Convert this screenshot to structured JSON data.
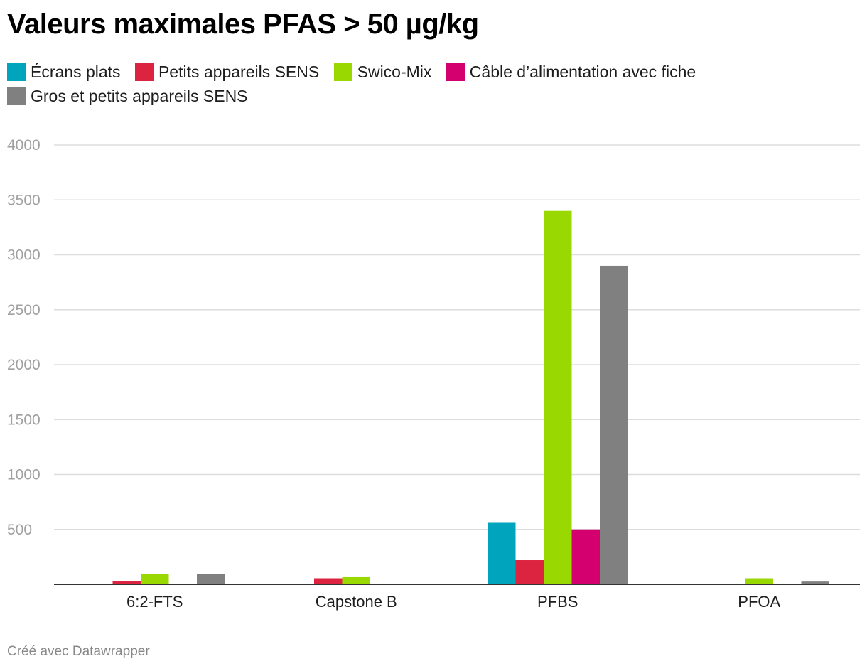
{
  "title": "Valeurs maximales PFAS > 50 µg/kg",
  "footer": "Créé avec Datawrapper",
  "legend": [
    {
      "label": "Écrans plats",
      "color": "#00a4bc"
    },
    {
      "label": "Petits appareils SENS",
      "color": "#dc2440"
    },
    {
      "label": "Swico-Mix",
      "color": "#99d800"
    },
    {
      "label": "Câble d’alimentation avec fiche",
      "color": "#d4006f"
    },
    {
      "label": "Gros et petits appareils SENS",
      "color": "#808080"
    }
  ],
  "chart_data": {
    "type": "bar",
    "title": "Valeurs maximales PFAS > 50 µg/kg",
    "xlabel": "",
    "ylabel": "",
    "ylim": [
      0,
      4000
    ],
    "yticks": [
      500,
      1000,
      1500,
      2000,
      2500,
      3000,
      3500,
      4000
    ],
    "grid": true,
    "legend_position": "top",
    "categories": [
      "6:2-FTS",
      "Capstone B",
      "PFBS",
      "PFOA"
    ],
    "series": [
      {
        "name": "Écrans plats",
        "color": "#00a4bc",
        "values": [
          null,
          null,
          560,
          null
        ]
      },
      {
        "name": "Petits appareils SENS",
        "color": "#dc2440",
        "values": [
          30,
          55,
          220,
          null
        ]
      },
      {
        "name": "Swico-Mix",
        "color": "#99d800",
        "values": [
          95,
          65,
          3400,
          55
        ]
      },
      {
        "name": "Câble d’alimentation avec fiche",
        "color": "#d4006f",
        "values": [
          null,
          null,
          500,
          null
        ]
      },
      {
        "name": "Gros et petits appareils SENS",
        "color": "#808080",
        "values": [
          95,
          null,
          2900,
          25
        ]
      }
    ]
  }
}
